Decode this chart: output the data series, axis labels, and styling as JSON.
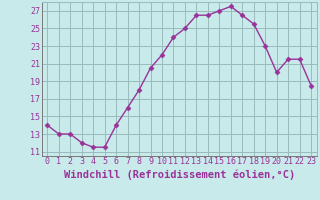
{
  "x": [
    0,
    1,
    2,
    3,
    4,
    5,
    6,
    7,
    8,
    9,
    10,
    11,
    12,
    13,
    14,
    15,
    16,
    17,
    18,
    19,
    20,
    21,
    22,
    23
  ],
  "y": [
    14,
    13,
    13,
    12,
    11.5,
    11.5,
    14,
    16,
    18,
    20.5,
    22,
    24,
    25,
    26.5,
    26.5,
    27,
    27.5,
    26.5,
    25.5,
    23,
    20,
    21.5,
    21.5,
    18.5
  ],
  "line_color": "#993399",
  "marker": "D",
  "markersize": 2.5,
  "linewidth": 1.0,
  "bg_color": "#c8eaea",
  "grid_color": "#99bbbb",
  "xlabel": "Windchill (Refroidissement éolien,°C)",
  "yticks": [
    11,
    13,
    15,
    17,
    19,
    21,
    23,
    25,
    27
  ],
  "xtick_labels": [
    "0",
    "1",
    "2",
    "3",
    "4",
    "5",
    "6",
    "7",
    "8",
    "9",
    "10",
    "11",
    "12",
    "13",
    "14",
    "15",
    "16",
    "17",
    "18",
    "19",
    "20",
    "21",
    "22",
    "23"
  ],
  "ylim": [
    10.5,
    28.0
  ],
  "xlim": [
    -0.5,
    23.5
  ],
  "tick_color": "#993399",
  "tick_fontsize": 6,
  "xlabel_fontsize": 7.5
}
